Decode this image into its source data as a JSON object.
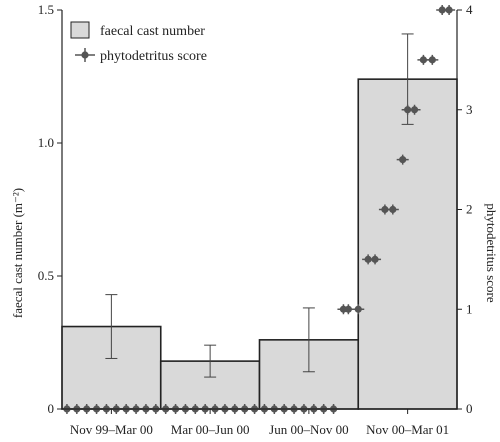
{
  "chart_data": {
    "type": "bar",
    "categories": [
      "Nov 99–Mar 00",
      "Mar 00–Jun 00",
      "Jun 00–Nov 00",
      "Nov 00–Mar 01"
    ],
    "ylabel_left": "faecal cast number (m⁻²)",
    "ylabel_right": "phytodetritus score",
    "ylim_left": [
      0,
      1.5
    ],
    "ylim_right": [
      0,
      4
    ],
    "yticks_left": [
      0,
      0.5,
      1.0,
      1.5
    ],
    "yticks_left_labels": [
      "0",
      "0.5",
      "1.0",
      "1.5"
    ],
    "yticks_right": [
      0,
      1,
      2,
      3,
      4
    ],
    "legend": {
      "placement": "top-left",
      "bar_label": "faecal cast number",
      "point_label": "phytodetritus score"
    },
    "bars": {
      "name": "faecal cast number",
      "values": [
        0.31,
        0.18,
        0.26,
        1.24
      ],
      "error_low": [
        0.19,
        0.12,
        0.14,
        1.07
      ],
      "error_high": [
        0.43,
        0.24,
        0.38,
        1.41
      ],
      "color": "#d9d9d9"
    },
    "points": {
      "name": "phytodetritus score",
      "color": "#555555",
      "x_time": [
        0.05,
        0.15,
        0.25,
        0.35,
        0.45,
        0.55,
        0.65,
        0.75,
        0.85,
        0.95,
        1.05,
        1.15,
        1.25,
        1.35,
        1.45,
        1.55,
        1.65,
        1.75,
        1.85,
        1.95,
        2.05,
        2.15,
        2.25,
        2.35,
        2.45,
        2.55,
        2.65,
        2.75,
        2.85,
        2.9,
        3.0,
        3.1,
        3.17,
        3.27,
        3.35,
        3.45,
        3.5,
        3.57,
        3.66,
        3.75,
        3.85,
        3.92
      ],
      "values": [
        0,
        0,
        0,
        0,
        0,
        0,
        0,
        0,
        0,
        0,
        0,
        0,
        0,
        0,
        0,
        0,
        0,
        0,
        0,
        0,
        0,
        0,
        0,
        0,
        0,
        0,
        0,
        0,
        1,
        1,
        1,
        1.5,
        1.5,
        2,
        2,
        2.5,
        3,
        3,
        3.5,
        3.5,
        4,
        4
      ]
    }
  }
}
